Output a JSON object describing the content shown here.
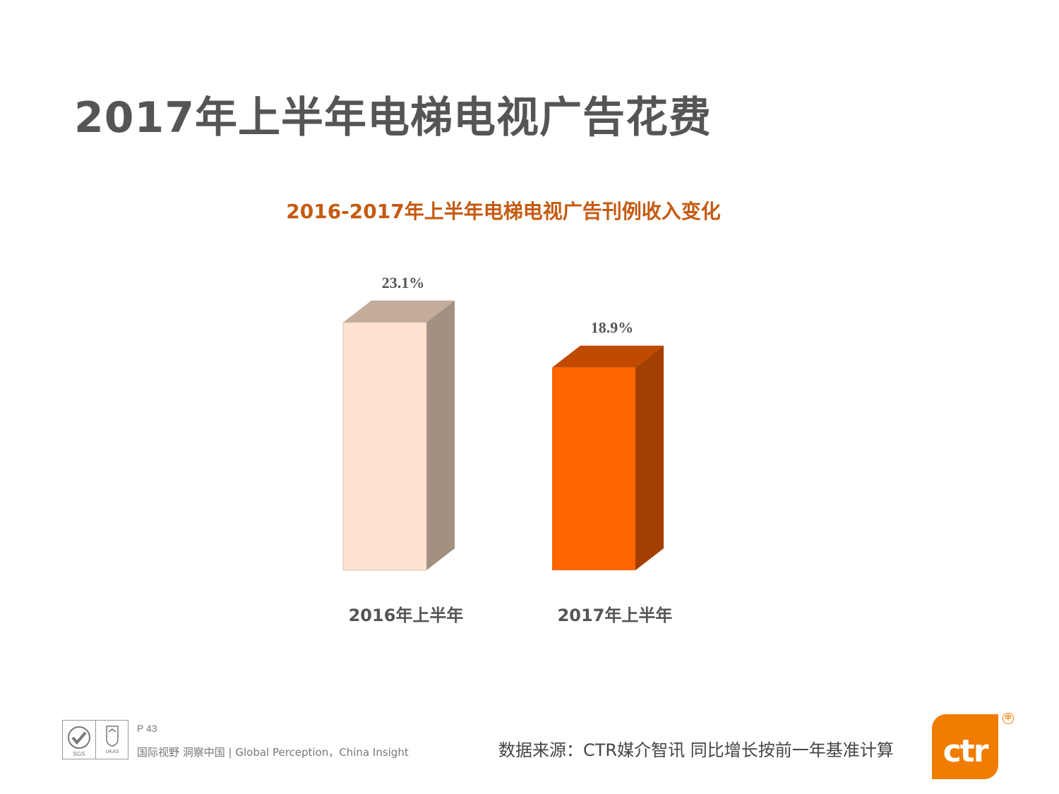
{
  "page": {
    "title": "2017年上半年电梯电视广告花费"
  },
  "chart_data": {
    "type": "bar",
    "title": "2016-2017年上半年电梯电视广告刊例收入变化",
    "categories": [
      "2016年上半年",
      "2017年上半年"
    ],
    "values": [
      23.1,
      18.9
    ],
    "value_labels": [
      "23.1%",
      "18.9%"
    ],
    "unit": "%",
    "ylim": [
      0,
      25
    ],
    "grid": false,
    "legend": "none",
    "bar_colors": [
      {
        "front": "#ffe2cf",
        "top": "#c4ac9b",
        "side": "#a49080"
      },
      {
        "front": "#ff6600",
        "top": "#c14a00",
        "side": "#a33f00"
      }
    ]
  },
  "footer": {
    "page_number": "P 43",
    "slogan": "国际视野  洞察中国 |  Global Perception，China Insight",
    "source": "数据来源：CTR媒介智讯    同比增长按前一年基准计算",
    "logo_text": "ctr",
    "registered_mark": "中",
    "cert_icons": [
      "iso-cert-icon",
      "ukas-cert-icon"
    ]
  },
  "colors": {
    "title": "#555555",
    "chart_title": "#c55a11",
    "brand_orange": "#f07c00"
  }
}
